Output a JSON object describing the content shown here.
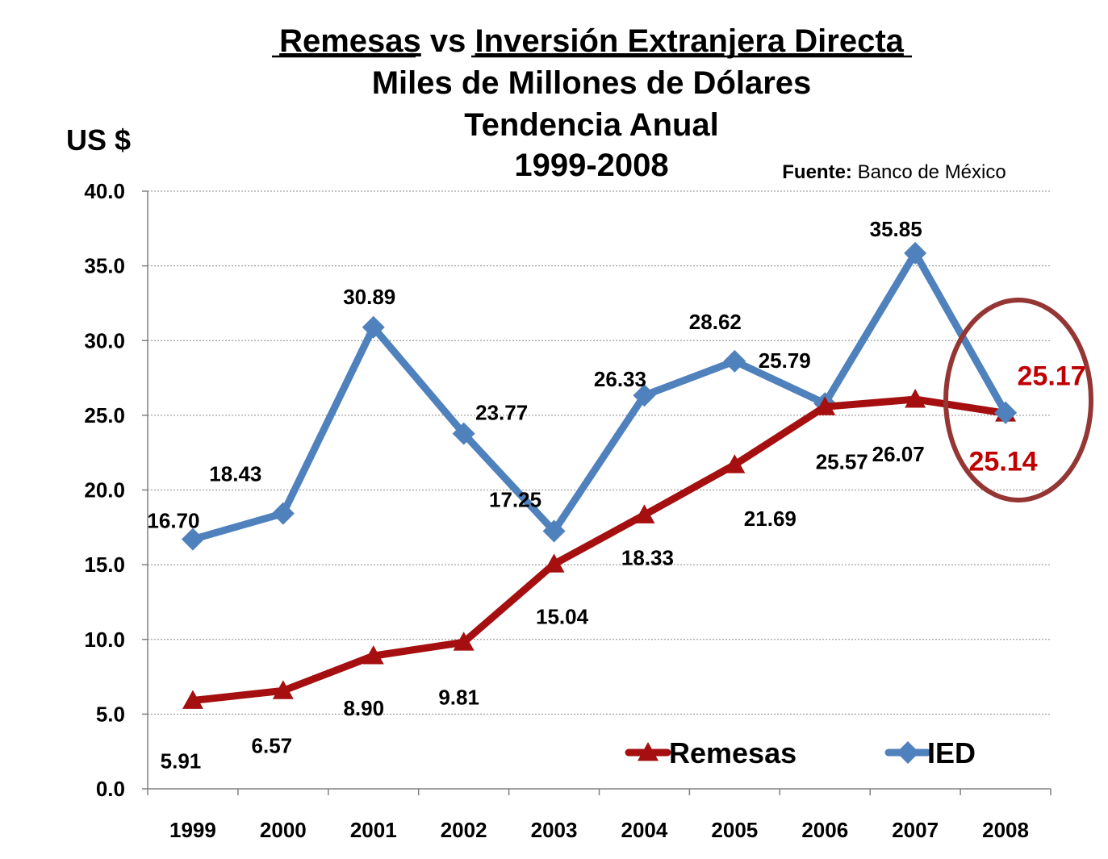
{
  "chart_data": {
    "type": "line",
    "title_part1": "Remesas",
    "title_vs": "vs",
    "title_part2": "Inversión Extranjera Directa",
    "subtitle1": "Miles de Millones de Dólares",
    "subtitle2": "Tendencia Anual",
    "subtitle3": "1999-2008",
    "ylabel": "US $",
    "source_label": "Fuente:",
    "source_text": "Banco de México",
    "categories": [
      "1999",
      "2000",
      "2001",
      "2002",
      "2003",
      "2004",
      "2005",
      "2006",
      "2007",
      "2008"
    ],
    "yticks": [
      "0.0",
      "5.0",
      "10.0",
      "15.0",
      "20.0",
      "25.0",
      "30.0",
      "35.0",
      "40.0"
    ],
    "ylim": [
      0,
      40
    ],
    "grid": true,
    "legend_position": "bottom-right",
    "series": [
      {
        "name": "Remesas",
        "color": "#A50F0F",
        "marker": "triangle",
        "values": [
          5.91,
          6.57,
          8.9,
          9.81,
          15.04,
          18.33,
          21.69,
          25.57,
          26.07,
          25.14
        ],
        "labels": [
          "5.91",
          "6.57",
          "8.90",
          "9.81",
          "15.04",
          "18.33",
          "21.69",
          "25.57",
          "26.07",
          "25.14"
        ]
      },
      {
        "name": "IED",
        "color": "#4F81BD",
        "marker": "diamond",
        "values": [
          16.7,
          18.43,
          30.89,
          23.77,
          17.25,
          26.33,
          28.62,
          25.79,
          35.85,
          25.17
        ],
        "labels": [
          "16.70",
          "18.43",
          "30.89",
          "23.77",
          "17.25",
          "26.33",
          "28.62",
          "25.79",
          "35.85",
          "25.17"
        ]
      }
    ],
    "highlight_color": "#C00000",
    "circle_color": "#943634"
  }
}
